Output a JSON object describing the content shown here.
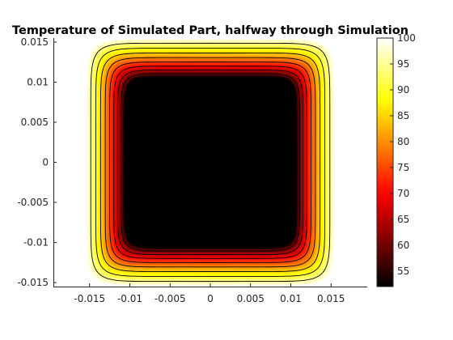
{
  "chart_data": {
    "type": "heatmap",
    "subtype": "filled-contour",
    "title": "Temperature of Simulated Part, halfway through Simulation",
    "xlabel": "",
    "ylabel": "",
    "xlim": [
      -0.0195,
      0.0195
    ],
    "ylim": [
      -0.0155,
      0.0155
    ],
    "x_ticks": [
      -0.015,
      -0.01,
      -0.005,
      0,
      0.005,
      0.01,
      0.015
    ],
    "x_tick_labels": [
      "-0.015",
      "-0.01",
      "-0.005",
      "0",
      "0.005",
      "0.01",
      "0.015"
    ],
    "y_ticks": [
      -0.015,
      -0.01,
      -0.005,
      0,
      0.005,
      0.01,
      0.015
    ],
    "y_tick_labels": [
      "-0.015",
      "-0.01",
      "-0.005",
      "0",
      "0.005",
      "0.01",
      "0.015"
    ],
    "data_extent": {
      "x": [
        -0.0155,
        0.0155
      ],
      "y": [
        -0.0155,
        0.0155
      ]
    },
    "core_half_width": 0.0106,
    "contour_levels": [
      55,
      60,
      65,
      70,
      75,
      80,
      85,
      90,
      95
    ],
    "colorbar": {
      "colormap": "hot",
      "range": [
        52,
        100
      ],
      "ticks": [
        55,
        60,
        65,
        70,
        75,
        80,
        85,
        90,
        95,
        100
      ],
      "tick_labels": [
        "55",
        "60",
        "65",
        "70",
        "75",
        "80",
        "85",
        "90",
        "95",
        "100"
      ],
      "location": "right"
    },
    "grid": false
  }
}
